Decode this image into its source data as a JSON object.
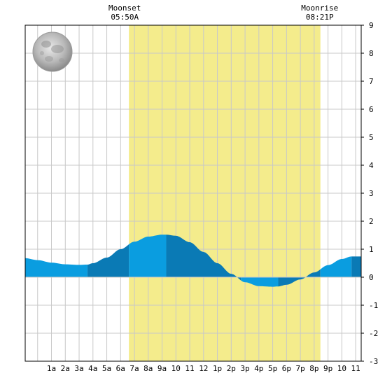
{
  "chart_data": {
    "type": "area",
    "title": "",
    "xlabel": "",
    "ylabel": "",
    "x_tick_labels": [
      "1a",
      "2a",
      "3a",
      "4a",
      "5a",
      "6a",
      "7a",
      "8a",
      "9a",
      "10",
      "11",
      "12",
      "1p",
      "2p",
      "3p",
      "4p",
      "5p",
      "6p",
      "7p",
      "8p",
      "9p",
      "10",
      "11"
    ],
    "x_range_hours": [
      -0.9,
      23.4
    ],
    "ylim": [
      -3,
      9
    ],
    "y_ticks": [
      -3,
      -2,
      -1,
      0,
      1,
      2,
      3,
      4,
      5,
      6,
      7,
      8,
      9
    ],
    "grid": true,
    "daylight_hours": [
      6.6,
      20.45
    ],
    "moon_events": [
      {
        "label": "Moonset",
        "time": "05:50A",
        "hour": 6.3
      },
      {
        "label": "Moonrise",
        "time": "08:21P",
        "hour": 20.4
      }
    ],
    "tide_series": {
      "name": "",
      "hours": [
        -0.9,
        0,
        1,
        2,
        3,
        3.6,
        4,
        5,
        6,
        7,
        8,
        9,
        9.3,
        10,
        11,
        12,
        13,
        14,
        15,
        16,
        17,
        17.4,
        18,
        19,
        20,
        21,
        22,
        22.7,
        23.4
      ],
      "heights": [
        0.68,
        0.61,
        0.52,
        0.46,
        0.44,
        0.45,
        0.5,
        0.7,
        1.0,
        1.27,
        1.45,
        1.52,
        1.52,
        1.48,
        1.25,
        0.9,
        0.5,
        0.12,
        -0.18,
        -0.32,
        -0.34,
        -0.33,
        -0.27,
        -0.08,
        0.17,
        0.43,
        0.65,
        0.74,
        0.74
      ]
    },
    "dark_band_edges_hours": [
      -0.9,
      3.6,
      6.6,
      9.3,
      14.7,
      17.4,
      20.45,
      22.7,
      23.4
    ],
    "colors": {
      "water_light": "#0a9de0",
      "water_dark": "#0a7ab5",
      "daylight": "#f4ec8c",
      "grid": "#c8c8c8"
    },
    "moon_icon": "full-moon-icon"
  }
}
